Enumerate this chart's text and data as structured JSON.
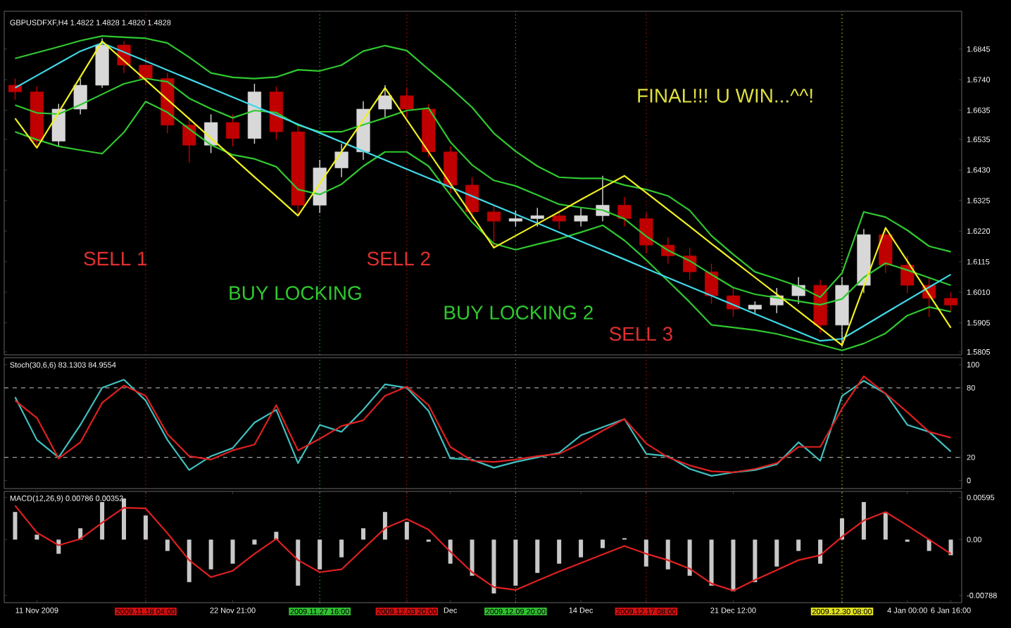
{
  "chart_data": [
    {
      "type": "candlestick",
      "title": "GBPUSDFXF,H4 1.4822 1.4828 1.4820 1.4828",
      "categories": [
        null,
        "11 Nov 2009",
        null,
        null,
        null,
        null,
        "2009.11.18 04:00",
        null,
        null,
        null,
        "22 Nov 21:00",
        null,
        null,
        null,
        "2009.11.27 16:00",
        null,
        null,
        null,
        "2009.12.03 20:00",
        null,
        "Dec",
        null,
        null,
        "2009.12.09 20:00",
        null,
        null,
        "14 Dec",
        null,
        null,
        "2009.12.17 08:00",
        null,
        null,
        null,
        "21 Dec 12:00",
        null,
        null,
        null,
        null,
        "2009.12.30 08:00",
        null,
        null,
        "4 Jan 00:00",
        null,
        "6 Jan 16:00"
      ],
      "ohlc": [
        [
          1.6721,
          1.6744,
          1.6671,
          1.6698
        ],
        [
          1.6698,
          1.6717,
          1.6511,
          1.6529
        ],
        [
          1.6529,
          1.6657,
          1.6511,
          1.6639
        ],
        [
          1.6639,
          1.6744,
          1.6621,
          1.6721
        ],
        [
          1.6721,
          1.6882,
          1.6712,
          1.6859
        ],
        [
          1.6859,
          1.6872,
          1.6763,
          1.679
        ],
        [
          1.679,
          1.6818,
          1.6721,
          1.6744
        ],
        [
          1.6744,
          1.6763,
          1.6556,
          1.6584
        ],
        [
          1.6584,
          1.6611,
          1.6456,
          1.6515
        ],
        [
          1.6515,
          1.6621,
          1.6488,
          1.6593
        ],
        [
          1.6593,
          1.6621,
          1.6511,
          1.6538
        ],
        [
          1.6538,
          1.6726,
          1.652,
          1.6698
        ],
        [
          1.6698,
          1.6717,
          1.6534,
          1.6561
        ],
        [
          1.6561,
          1.6589,
          1.6273,
          1.6309
        ],
        [
          1.6309,
          1.6465,
          1.6282,
          1.6437
        ],
        [
          1.6437,
          1.652,
          1.6405,
          1.6492
        ],
        [
          1.6492,
          1.6666,
          1.6465,
          1.6639
        ],
        [
          1.6639,
          1.6721,
          1.6611,
          1.6685
        ],
        [
          1.6685,
          1.6712,
          1.6611,
          1.6639
        ],
        [
          1.6639,
          1.6657,
          1.6474,
          1.6492
        ],
        [
          1.6492,
          1.6511,
          1.635,
          1.6378
        ],
        [
          1.6378,
          1.6405,
          1.6259,
          1.6286
        ],
        [
          1.6286,
          1.6309,
          1.6163,
          1.6254
        ],
        [
          1.6254,
          1.6291,
          1.6236,
          1.6263
        ],
        [
          1.6263,
          1.63,
          1.6236,
          1.6273
        ],
        [
          1.6273,
          1.6291,
          1.6227,
          1.6254
        ],
        [
          1.6254,
          1.63,
          1.6236,
          1.6273
        ],
        [
          1.6273,
          1.641,
          1.6254,
          1.6309
        ],
        [
          1.6309,
          1.6337,
          1.6236,
          1.6263
        ],
        [
          1.6263,
          1.6282,
          1.6144,
          1.6172
        ],
        [
          1.6172,
          1.6199,
          1.6108,
          1.6135
        ],
        [
          1.6135,
          1.6163,
          1.6053,
          1.608
        ],
        [
          1.608,
          1.6108,
          1.597,
          1.5998
        ],
        [
          1.5998,
          1.6025,
          1.5925,
          1.5952
        ],
        [
          1.5952,
          1.5979,
          1.5938,
          1.5966
        ],
        [
          1.5966,
          1.6025,
          1.5938,
          1.5998
        ],
        [
          1.5998,
          1.6062,
          1.597,
          1.6034
        ],
        [
          1.6034,
          1.6053,
          1.587,
          1.5897
        ],
        [
          1.5897,
          1.6062,
          1.5824,
          1.6034
        ],
        [
          1.6034,
          1.6227,
          1.6007,
          1.6208
        ],
        [
          1.6208,
          1.6236,
          1.6076,
          1.6103
        ],
        [
          1.6103,
          1.6135,
          1.6007,
          1.6034
        ],
        [
          1.6034,
          1.6062,
          1.5925,
          1.5989
        ],
        [
          1.5989,
          1.6011,
          1.5943,
          1.5966
        ]
      ],
      "colors": [
        "#c00000",
        "#c00000",
        "#d8d8d8",
        "#d8d8d8",
        "#d8d8d8",
        "#c00000",
        "#c00000",
        "#c00000",
        "#c00000",
        "#d8d8d8",
        "#c00000",
        "#d8d8d8",
        "#c00000",
        "#c00000",
        "#d8d8d8",
        "#d8d8d8",
        "#d8d8d8",
        "#d8d8d8",
        "#c00000",
        "#c00000",
        "#c00000",
        "#c00000",
        "#c00000",
        "#d8d8d8",
        "#d8d8d8",
        "#c00000",
        "#d8d8d8",
        "#d8d8d8",
        "#c00000",
        "#c00000",
        "#c00000",
        "#c00000",
        "#c00000",
        "#c00000",
        "#d8d8d8",
        "#d8d8d8",
        "#d8d8d8",
        "#c00000",
        "#d8d8d8",
        "#d8d8d8",
        "#c00000",
        "#c00000",
        "#c00000",
        "#c00000"
      ],
      "series": [
        {
          "type": "line",
          "color": "#30c830",
          "values": [
            1.6813,
            1.6833,
            1.6853,
            1.6874,
            1.689,
            1.6886,
            1.6882,
            1.6866,
            1.6817,
            1.6763,
            1.6748,
            1.6744,
            1.6749,
            1.6774,
            1.677,
            1.679,
            1.6838,
            1.6857,
            1.684,
            1.6775,
            1.6713,
            1.6645,
            1.6556,
            1.6494,
            1.6443,
            1.6405,
            1.6401,
            1.6401,
            1.6378,
            1.6363,
            1.6341,
            1.6291,
            1.6204,
            1.614,
            1.608,
            1.6056,
            1.603,
            1.5993,
            1.6076,
            1.6286,
            1.6268,
            1.6223,
            1.6168,
            1.6149
          ]
        },
        {
          "type": "line",
          "color": "#30c830",
          "values": [
            1.6653,
            1.6626,
            1.6622,
            1.6654,
            1.669,
            1.6726,
            1.6744,
            1.6733,
            1.6676,
            1.664,
            1.6609,
            1.6634,
            1.6627,
            1.6584,
            1.6561,
            1.6561,
            1.6585,
            1.6609,
            1.6634,
            1.6642,
            1.6526,
            1.6447,
            1.6394,
            1.6375,
            1.6344,
            1.6312,
            1.6301,
            1.6292,
            1.6262,
            1.6202,
            1.6154,
            1.6118,
            1.6071,
            1.6026,
            1.6003,
            1.5991,
            1.5979,
            1.5967,
            1.5987,
            1.6061,
            1.611,
            1.6086,
            1.606,
            1.6034
          ]
        },
        {
          "type": "line",
          "color": "#30c830",
          "values": [
            1.6561,
            1.6534,
            1.6511,
            1.6498,
            1.6486,
            1.6559,
            1.6665,
            1.6628,
            1.6571,
            1.6516,
            1.6482,
            1.6468,
            1.6441,
            1.6363,
            1.6346,
            1.6381,
            1.6443,
            1.6492,
            1.6492,
            1.6443,
            1.6344,
            1.625,
            1.6177,
            1.6156,
            1.6175,
            1.6193,
            1.6216,
            1.624,
            1.6188,
            1.6121,
            1.6049,
            1.5976,
            1.5898,
            1.5889,
            1.588,
            1.5867,
            1.5848,
            1.583,
            1.581,
            1.5834,
            1.5869,
            1.593,
            1.5959,
            1.5943
          ]
        },
        {
          "type": "line",
          "color": "#40d8e8",
          "values": [
            1.6712,
            1.6754,
            1.6796,
            1.6838,
            1.6866,
            1.6835,
            1.6804,
            1.6773,
            1.6742,
            1.6711,
            1.668,
            1.6649,
            1.6618,
            1.6587,
            1.6557,
            1.6526,
            1.6495,
            1.6464,
            1.6433,
            1.6402,
            1.6371,
            1.634,
            1.6309,
            1.6278,
            1.6247,
            1.6216,
            1.6185,
            1.6154,
            1.6123,
            1.6091,
            1.606,
            1.6029,
            1.5998,
            1.5967,
            1.5936,
            1.5905,
            1.5874,
            1.5843,
            1.585,
            1.5894,
            1.5939,
            1.5983,
            1.6027,
            1.6071
          ]
        },
        {
          "type": "line",
          "color": "#f0f020",
          "values": [
            1.6607,
            1.6506,
            1.6628,
            1.675,
            1.6872,
            1.6805,
            1.6739,
            1.6672,
            1.6606,
            1.6539,
            1.6473,
            1.6406,
            1.634,
            1.6273,
            1.6383,
            1.6493,
            1.6602,
            1.6712,
            1.6602,
            1.6492,
            1.6383,
            1.6273,
            1.6163,
            1.6204,
            1.6245,
            1.6286,
            1.6328,
            1.6369,
            1.641,
            1.6352,
            1.6294,
            1.6236,
            1.6177,
            1.6119,
            1.6061,
            1.6003,
            1.5945,
            1.5887,
            1.5828,
            1.603,
            1.6231,
            1.6117,
            1.6002,
            1.5888
          ]
        }
      ],
      "ylim": [
        1.5795,
        1.6975
      ],
      "yticks": [
        1.5805,
        1.5905,
        {
          "value": 1.601,
          "label": "1.6010"
        },
        1.6115,
        {
          "value": 1.622,
          "label": "1.6220"
        },
        1.6325,
        {
          "value": 1.643,
          "label": "1.6430"
        },
        1.6535,
        1.6635,
        {
          "value": 1.674,
          "label": "1.6740"
        },
        1.6845
      ],
      "tick_labels": "y",
      "ref_lines": [
        {
          "axis": "x",
          "value": "2009.11.18 04:00",
          "color": "#d01010",
          "line_style": "dotted"
        },
        {
          "axis": "x",
          "value": "2009.11.27 16:00",
          "color": "#30c030",
          "line_style": "dotted"
        },
        {
          "axis": "x",
          "value": "2009.12.03 20:00",
          "color": "#d01010",
          "line_style": "dotted"
        },
        {
          "axis": "x",
          "value": "2009.12.09 20:00",
          "color": "#30c030",
          "line_style": "dotted"
        },
        {
          "axis": "x",
          "value": "2009.12.17 08:00",
          "color": "#d01010",
          "line_style": "dotted"
        },
        {
          "axis": "x",
          "value": "2009.12.30 08:00",
          "color": "#e0e020",
          "line_style": "dotted"
        }
      ],
      "annotations": [
        "SELL 1",
        "BUY LOCKING",
        "SELL 2",
        "BUY LOCKING 2",
        "SELL 3",
        "FINAL!!! U WIN...^^!"
      ]
    },
    {
      "type": "line",
      "title": "Stoch(30,6,6) 83.1303 84.9554",
      "categories": [
        null,
        "11 Nov 2009",
        null,
        null,
        null,
        null,
        "2009.11.18 04:00",
        null,
        null,
        null,
        "22 Nov 21:00",
        null,
        null,
        null,
        "2009.11.27 16:00",
        null,
        null,
        null,
        "2009.12.03 20:00",
        null,
        "Dec",
        null,
        null,
        "2009.12.09 20:00",
        null,
        null,
        "14 Dec",
        null,
        null,
        "2009.12.17 08:00",
        null,
        null,
        null,
        "21 Dec 12:00",
        null,
        null,
        null,
        null,
        "2009.12.30 08:00",
        null,
        null,
        "4 Jan 00:00",
        null,
        "6 Jan 16:00"
      ],
      "series": [
        {
          "color": "#40c0c0",
          "values": [
            72,
            35,
            20,
            48,
            80,
            87,
            69,
            35,
            9,
            21,
            28,
            50,
            61,
            15,
            48,
            42,
            61,
            83,
            80,
            60,
            19,
            18,
            11,
            16,
            20,
            24,
            39,
            46,
            53,
            23,
            21,
            10,
            4,
            7,
            9,
            14,
            33,
            17,
            73,
            86,
            75,
            48,
            42,
            25
          ]
        },
        {
          "color": "#e02020",
          "values": [
            69,
            54,
            19,
            33,
            67,
            82,
            73,
            40,
            21,
            18,
            26,
            31,
            65,
            26,
            36,
            47,
            52,
            73,
            81,
            65,
            29,
            17,
            16,
            18,
            21,
            23,
            32,
            43,
            53,
            32,
            20,
            13,
            8,
            7,
            10,
            15,
            29,
            29,
            62,
            90,
            75,
            59,
            42,
            37
          ]
        }
      ],
      "ylim": [
        -7,
        106
      ],
      "yticks": [
        0,
        20,
        80,
        100
      ],
      "tick_labels": "y",
      "ref_lines": [
        {
          "axis": "y",
          "value": 20,
          "color": "#a0a0a0",
          "line_style": "dashed"
        },
        {
          "axis": "y",
          "value": 80,
          "color": "#a0a0a0",
          "line_style": "dashed"
        },
        {
          "axis": "x",
          "value": "2009.11.18 04:00",
          "color": "#d01010",
          "line_style": "dotted"
        },
        {
          "axis": "x",
          "value": "2009.11.27 16:00",
          "color": "#30c030",
          "line_style": "dotted"
        },
        {
          "axis": "x",
          "value": "2009.12.03 20:00",
          "color": "#d01010",
          "line_style": "dotted"
        },
        {
          "axis": "x",
          "value": "2009.12.09 20:00",
          "color": "#30c030",
          "line_style": "dotted"
        },
        {
          "axis": "x",
          "value": "2009.12.17 08:00",
          "color": "#d01010",
          "line_style": "dotted"
        },
        {
          "axis": "x",
          "value": "2009.12.30 08:00",
          "color": "#e0e020",
          "line_style": "dotted"
        }
      ]
    },
    {
      "type": "bar",
      "title": "MACD(12,26,9) 0.00786 0.00352",
      "categories": [
        null,
        "11 Nov 2009",
        null,
        null,
        null,
        null,
        "2009.11.18 04:00",
        null,
        null,
        null,
        "22 Nov 21:00",
        null,
        null,
        null,
        "2009.11.27 16:00",
        null,
        null,
        null,
        "2009.12.03 20:00",
        null,
        "Dec",
        null,
        null,
        "2009.12.09 20:00",
        null,
        null,
        "14 Dec",
        null,
        null,
        "2009.12.17 08:00",
        null,
        null,
        null,
        "21 Dec 12:00",
        null,
        null,
        null,
        null,
        "2009.12.30 08:00",
        null,
        null,
        "4 Jan 00:00",
        null,
        "6 Jan 16:00"
      ],
      "series": [
        {
          "type": "bar",
          "color": "#c8c8c8",
          "values": [
            0.0039,
            0.0007,
            -0.002,
            0.0016,
            0.0053,
            0.0058,
            0.0034,
            -0.0016,
            -0.006,
            -0.0042,
            -0.0034,
            -0.0007,
            0.0011,
            -0.0065,
            -0.0042,
            -0.0025,
            0.0016,
            0.0039,
            0.0025,
            -0.0003,
            -0.0034,
            -0.0051,
            -0.0076,
            -0.0065,
            -0.0047,
            -0.0034,
            -0.0025,
            -0.0012,
            0.0002,
            -0.0038,
            -0.0042,
            -0.0051,
            -0.0065,
            -0.0073,
            -0.006,
            -0.0038,
            -0.0016,
            -0.0034,
            0.003,
            0.0053,
            0.0039,
            -0.0003,
            -0.0016,
            -0.0022
          ]
        },
        {
          "type": "line",
          "color": "#e02020",
          "values": [
            0.0048,
            0.001,
            -0.0008,
            0.0001,
            0.0024,
            0.0045,
            0.0044,
            0.0009,
            -0.0029,
            -0.0053,
            -0.0044,
            -0.002,
            0.0001,
            -0.0029,
            -0.0046,
            -0.0042,
            -0.0013,
            0.0016,
            0.0029,
            0.0014,
            -0.0017,
            -0.0046,
            -0.0067,
            -0.0071,
            -0.0058,
            -0.0045,
            -0.0033,
            -0.0021,
            -0.0009,
            -0.002,
            -0.0029,
            -0.0041,
            -0.0062,
            -0.0072,
            -0.0057,
            -0.0043,
            -0.0029,
            -0.0022,
            0.0004,
            0.0027,
            0.0039,
            0.002,
            0,
            -0.002
          ]
        }
      ],
      "ylim": [
        -0.0089,
        0.0068
      ],
      "yticks": [
        -0.00788,
        {
          "value": 0,
          "label": "0.00"
        },
        0.00595
      ],
      "ref_lines": [
        {
          "axis": "x",
          "value": "2009.11.18 04:00",
          "color": "#d01010",
          "line_style": "dotted"
        },
        {
          "axis": "x",
          "value": "2009.11.27 16:00",
          "color": "#30c030",
          "line_style": "dotted"
        },
        {
          "axis": "x",
          "value": "2009.12.03 20:00",
          "color": "#d01010",
          "line_style": "dotted"
        },
        {
          "axis": "x",
          "value": "2009.12.09 20:00",
          "color": "#30c030",
          "line_style": "dotted"
        },
        {
          "axis": "x",
          "value": "2009.12.17 08:00",
          "color": "#d01010",
          "line_style": "dotted"
        },
        {
          "axis": "x",
          "value": "2009.12.30 08:00",
          "color": "#e0e020",
          "line_style": "dotted"
        }
      ]
    }
  ]
}
